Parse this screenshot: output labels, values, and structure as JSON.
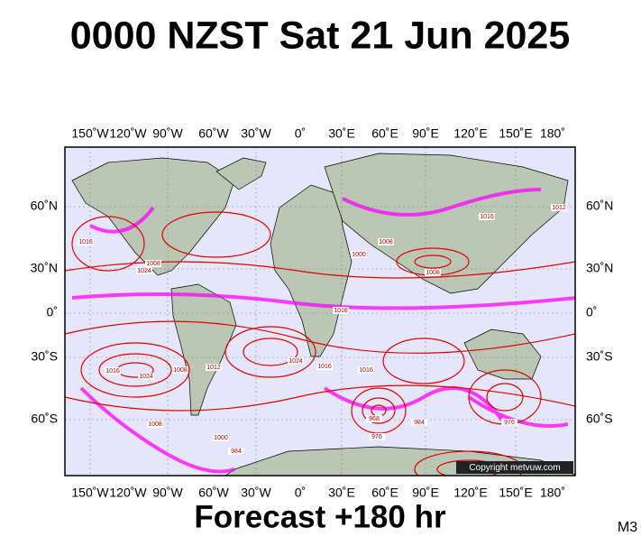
{
  "title": "0000 NZST Sat 21 Jun 2025",
  "lon_labels": [
    "150˚W",
    "120˚W",
    "90˚W",
    "60˚W",
    "30˚W",
    "0˚",
    "30˚E",
    "60˚E",
    "90˚E",
    "120˚E",
    "150˚E",
    "180˚"
  ],
  "lat_labels": [
    "60˚N",
    "30˚N",
    "0˚",
    "30˚S",
    "60˚S"
  ],
  "isobar_labels": [
    "1016",
    "1008",
    "1024",
    "1016",
    "1012",
    "1008",
    "1000",
    "1016",
    "1024",
    "1008",
    "1016",
    "1016",
    "1008",
    "984",
    "968",
    "976",
    "984",
    "976",
    "1008",
    "1016",
    "1024",
    "1012",
    "1000"
  ],
  "copyright": "Copyright metvuw.com",
  "footer": "Forecast +180 hr",
  "corner_label": "M3"
}
